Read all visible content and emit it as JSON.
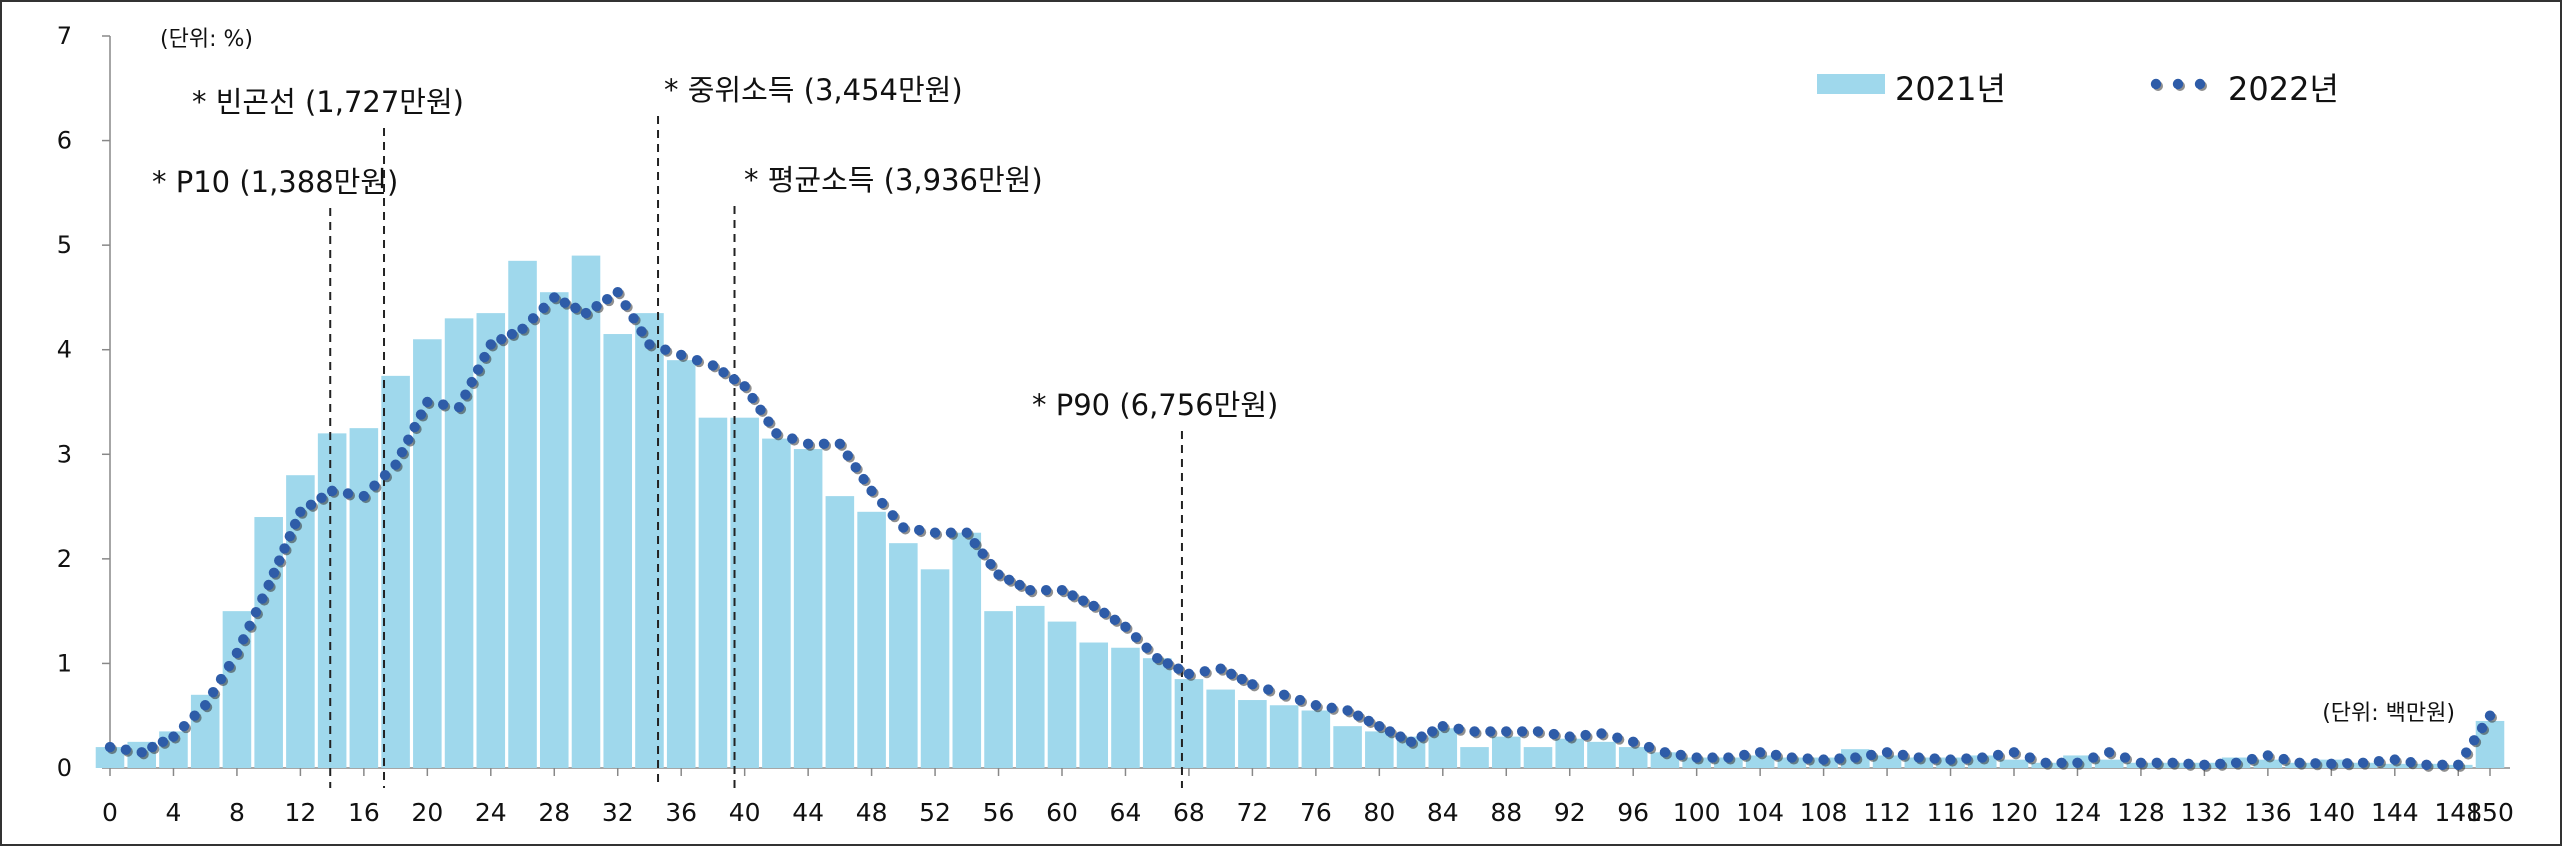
{
  "chart_data": {
    "type": "bar",
    "unit_label_y": "(단위: %)",
    "unit_label_x": "(단위: 백만원)",
    "ylim": [
      0,
      7
    ],
    "y_ticks": [
      "0",
      "1",
      "2",
      "3",
      "4",
      "5",
      "6",
      "7"
    ],
    "x_ticks": [
      "0",
      "4",
      "8",
      "12",
      "16",
      "20",
      "24",
      "28",
      "32",
      "36",
      "40",
      "44",
      "48",
      "52",
      "56",
      "60",
      "64",
      "68",
      "72",
      "76",
      "80",
      "84",
      "88",
      "92",
      "96",
      "100",
      "104",
      "108",
      "112",
      "116",
      "120",
      "124",
      "128",
      "132",
      "136",
      "140",
      "144",
      "148",
      "150"
    ],
    "x": [
      0,
      2,
      4,
      6,
      8,
      10,
      12,
      14,
      16,
      18,
      20,
      22,
      24,
      26,
      28,
      30,
      32,
      34,
      36,
      38,
      40,
      42,
      44,
      46,
      48,
      50,
      52,
      54,
      56,
      58,
      60,
      62,
      64,
      66,
      68,
      70,
      72,
      74,
      76,
      78,
      80,
      82,
      84,
      86,
      88,
      90,
      92,
      94,
      96,
      98,
      100,
      102,
      104,
      106,
      108,
      110,
      112,
      114,
      116,
      118,
      120,
      122,
      124,
      126,
      128,
      130,
      132,
      134,
      136,
      138,
      140,
      142,
      144,
      146,
      148,
      150
    ],
    "series": [
      {
        "name": "2021년",
        "style": "bar",
        "color": "#9fd8ec",
        "values": [
          0.2,
          0.25,
          0.35,
          0.7,
          1.5,
          2.4,
          2.8,
          3.2,
          3.25,
          3.75,
          4.1,
          4.3,
          4.35,
          4.85,
          4.55,
          4.9,
          4.15,
          4.35,
          3.9,
          3.35,
          3.35,
          3.15,
          3.05,
          2.6,
          2.45,
          2.15,
          1.9,
          2.25,
          1.5,
          1.55,
          1.4,
          1.2,
          1.15,
          1.05,
          0.85,
          0.75,
          0.65,
          0.6,
          0.55,
          0.4,
          0.35,
          0.3,
          0.38,
          0.2,
          0.3,
          0.2,
          0.28,
          0.25,
          0.2,
          0.15,
          0.1,
          0.1,
          0.12,
          0.1,
          0.1,
          0.18,
          0.12,
          0.1,
          0.1,
          0.12,
          0.08,
          0.05,
          0.12,
          0.08,
          0.05,
          0.05,
          0.05,
          0.1,
          0.08,
          0.05,
          0.08,
          0.05,
          0.04,
          0.04,
          0.03,
          0.45
        ]
      },
      {
        "name": "2022년",
        "style": "dotted-line",
        "color": "#2e5ca8",
        "values": [
          0.2,
          0.15,
          0.3,
          0.6,
          1.1,
          1.75,
          2.45,
          2.65,
          2.6,
          2.9,
          3.5,
          3.45,
          4.05,
          4.2,
          4.5,
          4.35,
          4.55,
          4.05,
          3.95,
          3.85,
          3.65,
          3.2,
          3.1,
          3.1,
          2.65,
          2.3,
          2.25,
          2.25,
          1.85,
          1.7,
          1.7,
          1.55,
          1.35,
          1.05,
          0.9,
          0.95,
          0.8,
          0.7,
          0.6,
          0.55,
          0.4,
          0.25,
          0.4,
          0.35,
          0.35,
          0.35,
          0.3,
          0.33,
          0.25,
          0.15,
          0.1,
          0.1,
          0.15,
          0.1,
          0.08,
          0.1,
          0.15,
          0.1,
          0.08,
          0.1,
          0.15,
          0.05,
          0.05,
          0.15,
          0.05,
          0.05,
          0.03,
          0.05,
          0.12,
          0.05,
          0.04,
          0.05,
          0.08,
          0.03,
          0.03,
          0.5
        ]
      }
    ],
    "reference_lines": [
      {
        "label": "* P10 (1,388만원)",
        "x": 13.88
      },
      {
        "label": "* 빈곤선 (1,727만원)",
        "x": 17.27
      },
      {
        "label": "* 중위소득 (3,454만원)",
        "x": 34.54
      },
      {
        "label": "* 평균소득 (3,936만원)",
        "x": 39.36
      },
      {
        "label": "* P90 (6,756만원)",
        "x": 67.56
      }
    ],
    "legend": {
      "position": "top-right",
      "entries": [
        "2021년",
        "2022년"
      ]
    }
  }
}
